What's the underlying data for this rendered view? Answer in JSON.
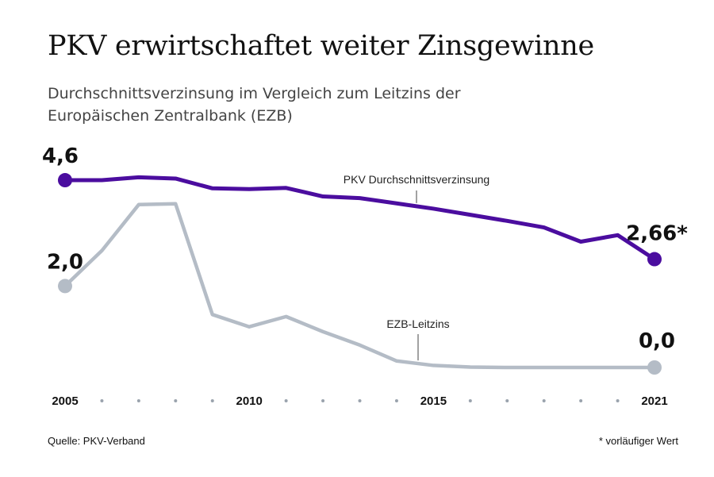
{
  "header": {
    "title": "PKV erwirtschaftet weiter Zinsgewinne",
    "subtitle": "Durchschnittsverzinsung im Vergleich zum Leitzins der Europäischen Zentralbank (EZB)"
  },
  "footer": {
    "source": "Quelle: PKV-Verband",
    "footnote": "* vorläufiger Wert"
  },
  "chart_data": {
    "type": "line",
    "x": [
      2005,
      2006,
      2007,
      2008,
      2009,
      2010,
      2011,
      2012,
      2013,
      2014,
      2015,
      2016,
      2017,
      2018,
      2019,
      2020,
      2021
    ],
    "x_tick_labels": [
      "2005",
      "2010",
      "2015",
      "2021"
    ],
    "ylim": [
      0,
      4.8
    ],
    "grid": false,
    "legend": "inline labels",
    "series": [
      {
        "name": "PKV Durchschnittsverzinsung",
        "color": "#4b0d9f",
        "values": [
          4.6,
          4.6,
          4.67,
          4.64,
          4.4,
          4.38,
          4.41,
          4.2,
          4.16,
          4.03,
          3.9,
          3.75,
          3.6,
          3.44,
          3.09,
          3.25,
          2.66
        ],
        "start_label": "4,6",
        "end_label": "2,66*"
      },
      {
        "name": "EZB-Leitzins",
        "color": "#b4bcc6",
        "values": [
          2.0,
          2.87,
          4.0,
          4.02,
          1.3,
          1.0,
          1.25,
          0.88,
          0.55,
          0.16,
          0.05,
          0.01,
          0.0,
          0.0,
          0.0,
          0.0,
          0.0
        ],
        "start_label": "2,0",
        "end_label": "0,0"
      }
    ]
  }
}
